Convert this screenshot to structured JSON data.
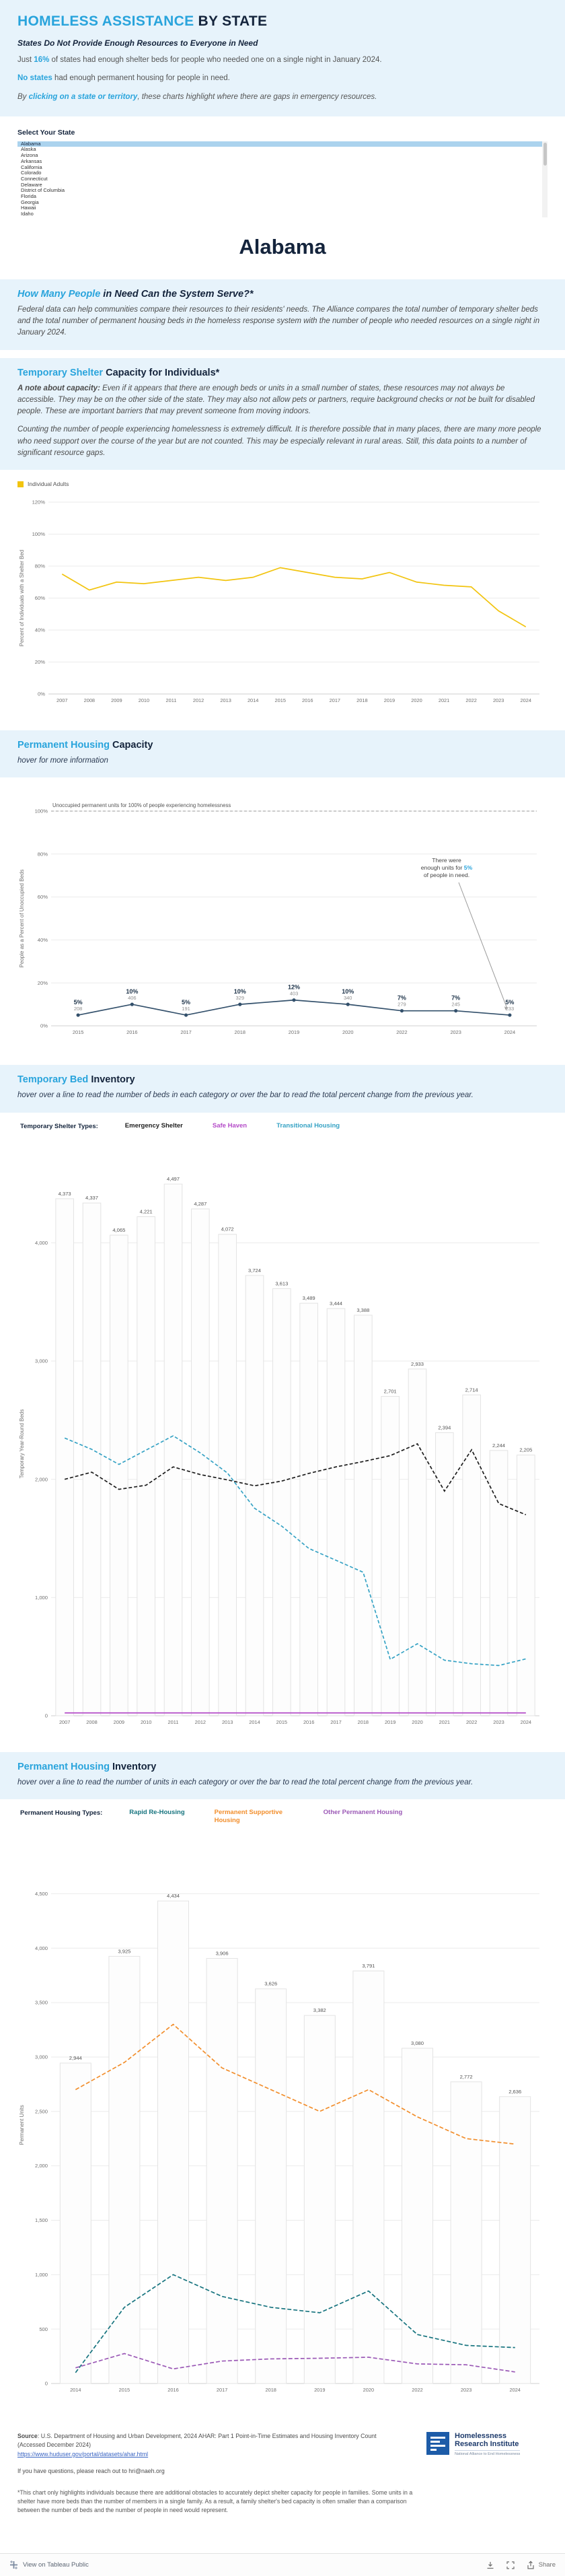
{
  "header": {
    "title_blue": "HOMELESS ASSISTANCE",
    "title_dark": " BY STATE",
    "subtitle": "States Do Not Provide Enough Resources to Everyone in Need",
    "p1_pre": "Just ",
    "p1_highlight": "16%",
    "p1_post": " of states had enough shelter beds for people who needed one on a single night in January 2024.",
    "p2_highlight": "No states",
    "p2_post": " had enough permanent housing for people in need.",
    "p3_pre": "By ",
    "p3_highlight": "clicking on a state or territory",
    "p3_post": ", these charts highlight where there are gaps in emergency resources."
  },
  "state_selector": {
    "label": "Select Your State",
    "selected": "Alabama",
    "options": [
      "Alabama",
      "Alaska",
      "Arizona",
      "Arkansas",
      "California",
      "Colorado",
      "Connecticut",
      "Delaware",
      "District of Columbia",
      "Florida",
      "Georgia",
      "Hawaii",
      "Idaho"
    ]
  },
  "state_title": "Alabama",
  "section_system": {
    "heading_blue": "How Many People",
    "heading_dark": " in Need Can the System Serve?*",
    "body": "Federal data can help communities compare their resources to their residents' needs. The Alliance compares the total number of temporary shelter beds and the total number of permanent housing beds in the homeless response system with the number of people who needed resources on a single night in January 2024."
  },
  "section_temp_capacity": {
    "heading_blue": "Temporary Shelter",
    "heading_dark": " Capacity for Individuals*",
    "note_lead": "A note about capacity:",
    "note_body": " Even if it appears that there are enough beds or units in a small number of states, these resources may not always be accessible. They may be on the other side of the state. They may also not allow pets or partners, require background checks or not be built for disabled people. These are important barriers that may prevent someone from moving indoors.",
    "para2": "Counting the number of people experiencing homelessness is extremely difficult. It is therefore possible that in many places, there are many more people who need support over the course of the year but are not counted. This may be especially relevant in rural areas. Still, this data points to a number of significant resource gaps.",
    "legend_label": "Individual Adults"
  },
  "section_perm_capacity": {
    "heading_blue": "Permanent Housing",
    "heading_dark": " Capacity",
    "subtext": "hover for more information"
  },
  "section_temp_inventory": {
    "heading_blue": "Temporary Bed",
    "heading_dark": " Inventory",
    "subtext": "hover over a line to read the number of beds in each category or over the bar to read the total percent change from the previous year.",
    "legend_title": "Temporary Shelter Types:"
  },
  "section_perm_inventory": {
    "heading_blue": "Permanent Housing",
    "heading_dark": " Inventory",
    "subtext": "hover over a line to read the number of units in each category or over the bar to read the total percent change from the previous year.",
    "legend_title": "Permanent Housing Types:"
  },
  "footer": {
    "source_lead": "Source",
    "source_text": ": U.S. Department of Housing and Urban Development, 2024 AHAR: Part 1 Point-in-Time Estimates and Housing Inventory Count (Accessed December 2024)",
    "source_link": "https://www.huduser.gov/portal/datasets/ahar.html",
    "questions": "If you have questions, please reach out to hri@naeh.org",
    "footnote": "*This chart only highlights individuals because there are additional obstacles to accurately depict shelter capacity for people in families. Some units in a shelter have more beds than the number of members in a single family. As a result, a family shelter's bed capacity is often smaller than a comparison between the number of beds and the number of people in need would represent.",
    "logo_line1": "Homelessness",
    "logo_line2": "Research Institute",
    "logo_tagline": "National Alliance to End Homelessness"
  },
  "toolbar": {
    "view_label": "View on Tableau Public",
    "share_label": "Share"
  },
  "colors": {
    "accent_blue": "#29a4dc",
    "navy": "#14243c",
    "panel_blue": "#e7f3fb",
    "individual_adults": "#f2c40f",
    "capacity_line": "#33506b",
    "emergency_shelter": "#1d1d1d",
    "safe_haven": "#b44bc8",
    "transitional_housing": "#35a2c4",
    "rapid_rehousing": "#17747f",
    "permanent_supportive": "#f28e2c",
    "other_permanent": "#9b59b6"
  },
  "chart_data": [
    {
      "id": "shelter-bed-percent",
      "type": "line",
      "title": "Temporary Shelter Capacity for Individuals",
      "ylabel": "Percent of Individuals with a Shelter Bed",
      "ylim": [
        0,
        120
      ],
      "yticks": [
        0,
        20,
        40,
        60,
        80,
        100,
        120
      ],
      "ytick_suffix": "%",
      "grid": true,
      "legend_position": "top-left",
      "categories": [
        2007,
        2008,
        2009,
        2010,
        2011,
        2012,
        2013,
        2014,
        2015,
        2016,
        2017,
        2018,
        2019,
        2020,
        2021,
        2022,
        2023,
        2024
      ],
      "series": [
        {
          "name": "Individual Adults",
          "color": "#f2c40f",
          "dash": "",
          "values": [
            75,
            65,
            70,
            69,
            71,
            73,
            71,
            73,
            79,
            76,
            73,
            72,
            76,
            70,
            68,
            67,
            52,
            42
          ]
        }
      ]
    },
    {
      "id": "permanent-housing-capacity",
      "type": "line",
      "title": "Permanent Housing Capacity",
      "ylabel": "People as a Percent of Unoccupied Beds",
      "ylim": [
        0,
        100
      ],
      "yticks": [
        0,
        20,
        40,
        60,
        80,
        100
      ],
      "ytick_suffix": "%",
      "grid": true,
      "categories": [
        2015,
        2016,
        2017,
        2018,
        2019,
        2020,
        2022,
        2023,
        2024
      ],
      "series": [
        {
          "name": "People as a Percent of Unoccupied Beds",
          "color": "#33506b",
          "dash": "",
          "values": [
            5,
            10,
            5,
            10,
            12,
            10,
            7,
            7,
            5
          ]
        }
      ],
      "point_counts": [
        208,
        406,
        191,
        329,
        403,
        340,
        279,
        245,
        233
      ],
      "reference_line": {
        "value": 100,
        "label": "Unoccupied permanent units for 100% of people experiencing homelessness"
      },
      "annotation": {
        "line1": "There were",
        "line2_pre": "enough units for ",
        "line2_highlight": "5%",
        "line3": "of people in need.",
        "highlight_color": "#29a4dc"
      }
    },
    {
      "id": "temporary-bed-inventory",
      "type": "bar-line",
      "title": "Temporary Bed Inventory",
      "ylabel": "Temporary Year-Round Beds",
      "ylim": [
        0,
        4600
      ],
      "yticks": [
        0,
        1000,
        2000,
        3000,
        4000
      ],
      "grid": true,
      "categories": [
        2007,
        2008,
        2009,
        2010,
        2011,
        2012,
        2013,
        2014,
        2015,
        2016,
        2017,
        2018,
        2019,
        2020,
        2021,
        2022,
        2023,
        2024
      ],
      "bar_totals": [
        4373,
        4337,
        4065,
        4221,
        4497,
        4287,
        4072,
        3724,
        3613,
        3489,
        3444,
        3388,
        2701,
        2933,
        2394,
        2714,
        2244,
        2205
      ],
      "series": [
        {
          "name": "Emergency Shelter",
          "color": "#1d1d1d",
          "dash": "5,3",
          "values": [
            2000,
            2060,
            1915,
            1950,
            2105,
            2040,
            1995,
            1945,
            1985,
            2050,
            2105,
            2150,
            2200,
            2300,
            1900,
            2250,
            1795,
            1700
          ]
        },
        {
          "name": "Safe Haven",
          "color": "#b44bc8",
          "dash": "",
          "values": [
            24,
            24,
            24,
            24,
            24,
            24,
            24,
            24,
            24,
            24,
            24,
            24,
            24,
            24,
            24,
            24,
            24,
            24
          ]
        },
        {
          "name": "Transitional Housing",
          "color": "#35a2c4",
          "dash": "5,3",
          "values": [
            2349,
            2253,
            2126,
            2247,
            2368,
            2223,
            2053,
            1755,
            1604,
            1415,
            1315,
            1214,
            477,
            609,
            470,
            440,
            425,
            481
          ]
        }
      ]
    },
    {
      "id": "permanent-housing-inventory",
      "type": "bar-line",
      "title": "Permanent Housing Inventory",
      "ylabel": "Permanent Units",
      "ylim": [
        0,
        4750
      ],
      "yticks": [
        0,
        500,
        1000,
        1500,
        2000,
        2500,
        3000,
        3500,
        4000,
        4500
      ],
      "grid": true,
      "categories": [
        2014,
        2015,
        2016,
        2017,
        2018,
        2019,
        2020,
        2022,
        2023,
        2024
      ],
      "bar_totals": [
        2944,
        3925,
        4434,
        3906,
        3626,
        3382,
        3791,
        3080,
        2772,
        2636
      ],
      "series": [
        {
          "name": "Rapid Re-Housing",
          "color": "#17747f",
          "dash": "6,3",
          "values": [
            100,
            700,
            1000,
            800,
            700,
            650,
            850,
            450,
            350,
            330
          ]
        },
        {
          "name": "Permanent Supportive Housing",
          "color": "#f28e2c",
          "dash": "6,3",
          "values": [
            2700,
            2950,
            3300,
            2900,
            2700,
            2500,
            2700,
            2450,
            2250,
            2200
          ]
        },
        {
          "name": "Other Permanent Housing",
          "color": "#9b59b6",
          "dash": "6,3",
          "values": [
            144,
            275,
            134,
            206,
            226,
            232,
            241,
            180,
            172,
            106
          ]
        }
      ]
    }
  ]
}
